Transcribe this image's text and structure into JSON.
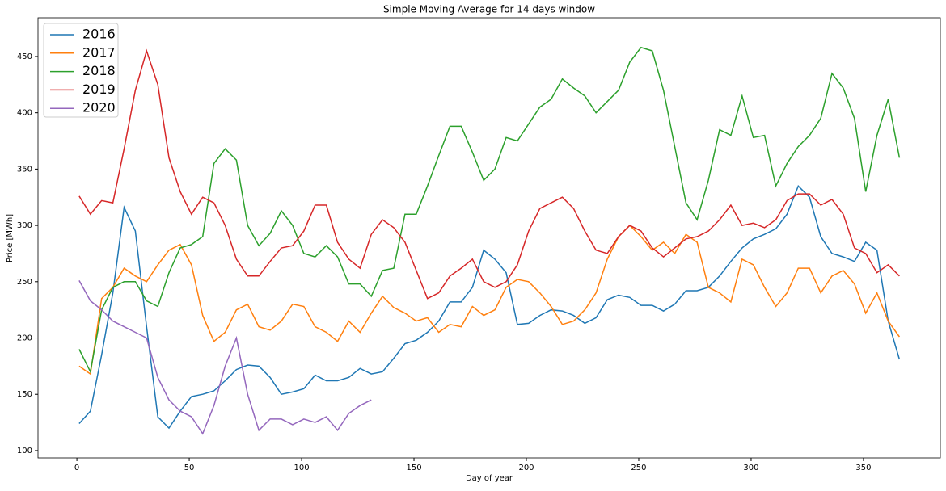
{
  "chart_data": {
    "type": "line",
    "title": "Simple Moving Average for 14 days window",
    "x_label": "Day of year",
    "y_label": "Price [MWh]",
    "x": [
      1,
      6,
      11,
      16,
      21,
      26,
      31,
      36,
      41,
      46,
      51,
      56,
      61,
      66,
      71,
      76,
      81,
      86,
      91,
      96,
      101,
      106,
      111,
      116,
      121,
      126,
      131,
      136,
      141,
      146,
      151,
      156,
      161,
      166,
      171,
      176,
      181,
      186,
      191,
      196,
      201,
      206,
      211,
      216,
      221,
      226,
      231,
      236,
      241,
      246,
      251,
      256,
      261,
      266,
      271,
      276,
      281,
      286,
      291,
      296,
      301,
      306,
      311,
      316,
      321,
      326,
      331,
      336,
      341,
      346,
      351,
      356,
      361,
      366
    ],
    "series": [
      {
        "name": "2016",
        "color": "#1f77b4",
        "values": [
          124,
          135,
          185,
          240,
          316,
          295,
          210,
          130,
          120,
          135,
          148,
          150,
          153,
          162,
          172,
          176,
          175,
          165,
          150,
          152,
          155,
          167,
          162,
          162,
          165,
          173,
          168,
          170,
          182,
          195,
          198,
          205,
          215,
          232,
          232,
          245,
          278,
          270,
          258,
          212,
          213,
          220,
          225,
          224,
          220,
          213,
          218,
          234,
          238,
          236,
          229,
          229,
          224,
          230,
          242,
          242,
          245,
          255,
          268,
          280,
          288,
          292,
          297,
          310,
          335,
          325,
          290,
          275,
          272,
          268,
          285,
          278,
          215,
          181
        ]
      },
      {
        "name": "2017",
        "color": "#ff7f0e",
        "values": [
          175,
          168,
          235,
          245,
          262,
          255,
          250,
          265,
          278,
          283,
          265,
          220,
          197,
          205,
          225,
          230,
          210,
          207,
          215,
          230,
          228,
          210,
          205,
          197,
          215,
          205,
          222,
          237,
          227,
          222,
          215,
          218,
          205,
          212,
          210,
          228,
          220,
          225,
          245,
          252,
          250,
          240,
          228,
          212,
          215,
          225,
          240,
          270,
          290,
          300,
          290,
          278,
          285,
          275,
          292,
          285,
          245,
          240,
          232,
          270,
          265,
          245,
          228,
          240,
          262,
          262,
          240,
          255,
          260,
          248,
          222,
          240,
          215,
          201
        ]
      },
      {
        "name": "2018",
        "color": "#2ca02c",
        "values": [
          190,
          170,
          225,
          245,
          250,
          250,
          233,
          228,
          258,
          280,
          283,
          290,
          355,
          368,
          358,
          300,
          282,
          293,
          313,
          300,
          275,
          272,
          282,
          272,
          248,
          248,
          237,
          260,
          262,
          310,
          310,
          335,
          362,
          388,
          388,
          365,
          340,
          350,
          378,
          375,
          390,
          405,
          412,
          430,
          422,
          415,
          400,
          410,
          420,
          445,
          458,
          455,
          420,
          370,
          320,
          305,
          340,
          385,
          380,
          415,
          378,
          380,
          335,
          355,
          370,
          380,
          395,
          435,
          422,
          395,
          330,
          380,
          412,
          360
        ]
      },
      {
        "name": "2019",
        "color": "#d62728",
        "values": [
          326,
          310,
          322,
          320,
          368,
          420,
          455,
          425,
          360,
          330,
          310,
          325,
          320,
          300,
          270,
          255,
          255,
          268,
          280,
          282,
          295,
          318,
          318,
          285,
          270,
          262,
          292,
          305,
          298,
          285,
          260,
          235,
          240,
          255,
          262,
          270,
          250,
          245,
          250,
          265,
          295,
          315,
          320,
          325,
          315,
          295,
          278,
          275,
          290,
          300,
          295,
          280,
          272,
          280,
          288,
          290,
          295,
          305,
          318,
          300,
          302,
          298,
          305,
          322,
          328,
          328,
          318,
          323,
          310,
          280,
          275,
          258,
          265,
          255
        ]
      },
      {
        "name": "2020",
        "color": "#9467bd",
        "values": [
          251,
          233,
          225,
          215,
          210,
          205,
          200,
          165,
          145,
          135,
          130,
          115,
          140,
          175,
          200,
          150,
          118,
          128,
          128,
          123,
          128,
          125,
          130,
          118,
          133,
          140,
          145,
          null,
          null,
          null,
          null,
          null,
          null,
          null,
          null,
          null,
          null,
          null,
          null,
          null,
          null,
          null,
          null,
          null,
          null,
          null,
          null,
          null,
          null,
          null,
          null,
          null,
          null,
          null,
          null,
          null,
          null,
          null,
          null,
          null,
          null,
          null,
          null,
          null,
          null,
          null,
          null,
          null,
          null,
          null,
          null,
          null,
          null,
          null
        ]
      }
    ],
    "xlim": [
      -17.3,
      384.2
    ],
    "ylim": [
      93.5,
      484.4
    ],
    "xticks": [
      0,
      50,
      100,
      150,
      200,
      250,
      300,
      350
    ],
    "yticks": [
      100,
      150,
      200,
      250,
      300,
      350,
      400,
      450
    ],
    "legend": "upper left"
  }
}
